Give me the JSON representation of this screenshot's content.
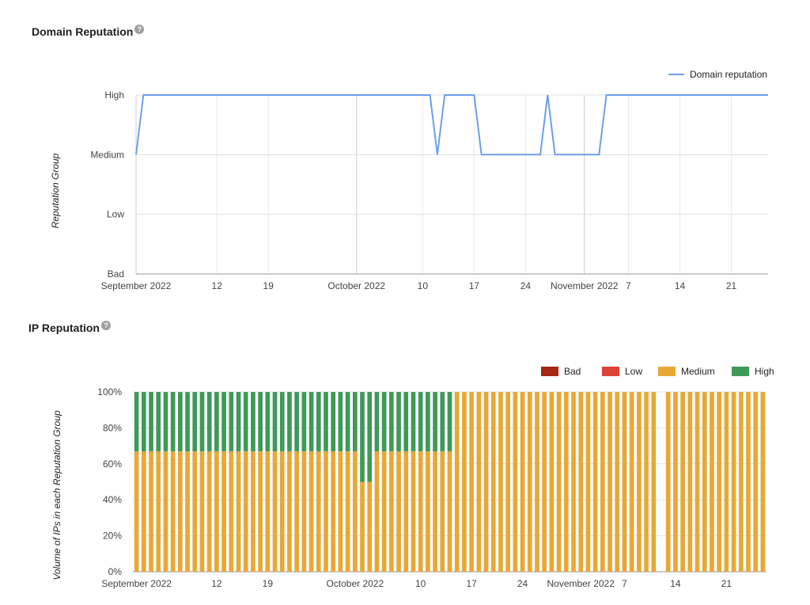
{
  "domain_section": {
    "title": "Domain Reputation"
  },
  "ip_section": {
    "title": "IP Reputation"
  },
  "chart_data": [
    {
      "type": "line",
      "ylabel": "Reputation Group",
      "y_categories": [
        "Bad",
        "Low",
        "Medium",
        "High"
      ],
      "x_ticks": [
        "September 2022",
        "12",
        "19",
        "October 2022",
        "10",
        "17",
        "24",
        "November 2022",
        "7",
        "14",
        "21"
      ],
      "x_tick_dates": [
        "2022-09-01",
        "2022-09-12",
        "2022-09-19",
        "2022-10-01",
        "2022-10-10",
        "2022-10-17",
        "2022-10-24",
        "2022-11-01",
        "2022-11-07",
        "2022-11-14",
        "2022-11-21"
      ],
      "x_range": [
        "2022-09-01",
        "2022-11-26"
      ],
      "series": [
        {
          "name": "Domain reputation",
          "color": "#6d9eeb",
          "points": [
            {
              "date": "2022-09-01",
              "value": "Medium"
            },
            {
              "date": "2022-09-02",
              "value": "High"
            },
            {
              "date": "2022-10-11",
              "value": "High"
            },
            {
              "date": "2022-10-12",
              "value": "Medium"
            },
            {
              "date": "2022-10-13",
              "value": "High"
            },
            {
              "date": "2022-10-17",
              "value": "High"
            },
            {
              "date": "2022-10-18",
              "value": "Medium"
            },
            {
              "date": "2022-10-26",
              "value": "Medium"
            },
            {
              "date": "2022-10-27",
              "value": "High"
            },
            {
              "date": "2022-10-28",
              "value": "Medium"
            },
            {
              "date": "2022-11-03",
              "value": "Medium"
            },
            {
              "date": "2022-11-04",
              "value": "High"
            },
            {
              "date": "2022-11-26",
              "value": "High"
            }
          ]
        }
      ]
    },
    {
      "type": "bar",
      "stacked": true,
      "ylabel": "Volume of IPs in each Reputation Group",
      "y_ticks": [
        "0%",
        "20%",
        "40%",
        "60%",
        "80%",
        "100%"
      ],
      "ylim": [
        0,
        100
      ],
      "x_ticks": [
        "September 2022",
        "12",
        "19",
        "October 2022",
        "10",
        "17",
        "24",
        "November 2022",
        "7",
        "14",
        "21"
      ],
      "x_tick_dates": [
        "2022-09-01",
        "2022-09-12",
        "2022-09-19",
        "2022-10-01",
        "2022-10-10",
        "2022-10-17",
        "2022-10-24",
        "2022-11-01",
        "2022-11-07",
        "2022-11-14",
        "2022-11-21"
      ],
      "x_range": [
        "2022-09-01",
        "2022-11-26"
      ],
      "legend": [
        {
          "name": "Bad",
          "color": "#a52714"
        },
        {
          "name": "Low",
          "color": "#db4437"
        },
        {
          "name": "Medium",
          "color": "#e8a838"
        },
        {
          "name": "High",
          "color": "#3f9958"
        }
      ],
      "segments": [
        {
          "from": "2022-09-01",
          "to": "2022-10-01",
          "Medium": 67,
          "High": 33
        },
        {
          "from": "2022-10-02",
          "to": "2022-10-03",
          "Medium": 50,
          "High": 50
        },
        {
          "from": "2022-10-04",
          "to": "2022-10-14",
          "Medium": 67,
          "High": 33
        },
        {
          "from": "2022-10-15",
          "to": "2022-11-11",
          "Medium": 100,
          "High": 0
        },
        {
          "from": "2022-11-12",
          "to": "2022-11-12",
          "Medium": 0,
          "High": 0
        },
        {
          "from": "2022-11-13",
          "to": "2022-11-26",
          "Medium": 100,
          "High": 0
        }
      ]
    }
  ]
}
